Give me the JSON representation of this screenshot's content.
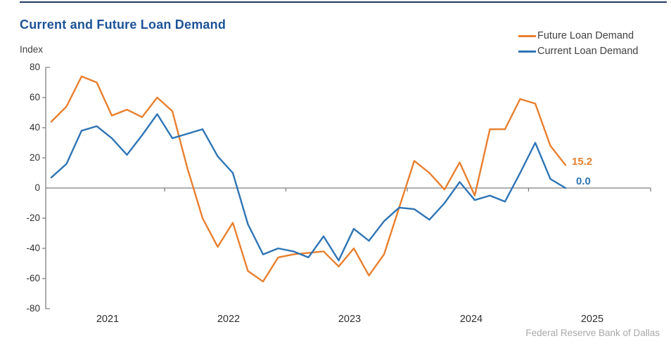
{
  "chart_data": {
    "type": "line",
    "title": "Current and Future Loan Demand",
    "ylabel": "Index",
    "ylim": [
      -80,
      80
    ],
    "y_ticks": [
      80,
      60,
      40,
      20,
      0,
      -20,
      -40,
      -60,
      -80
    ],
    "x_tick_labels": [
      "2021",
      "2022",
      "2023",
      "2024",
      "2025"
    ],
    "points_per_year": 8,
    "grid": "off",
    "legend_position": "top-right",
    "series": [
      {
        "name": "Future Loan Demand",
        "color": "#e87f2e",
        "end_label": "15.2",
        "values": [
          44,
          54,
          74,
          70,
          48,
          52,
          47,
          60,
          51,
          13,
          -20,
          -39,
          -23,
          -55,
          -62,
          -46,
          -44,
          -43,
          -42,
          -52,
          -40,
          -58,
          -44,
          -13,
          18,
          10,
          -1,
          17,
          -5,
          39,
          39,
          59,
          56,
          28,
          15.2
        ]
      },
      {
        "name": "Current Loan Demand",
        "color": "#2e74b5",
        "end_label": "0.0",
        "values": [
          7,
          16,
          38,
          41,
          33,
          22,
          35,
          49,
          33,
          36,
          39,
          21,
          10,
          -24,
          -44,
          -40,
          -42,
          -46,
          -32,
          -48,
          -27,
          -35,
          -22,
          -13,
          -14,
          -21,
          -10,
          4,
          -8,
          -5,
          -9,
          10,
          30,
          6,
          0
        ]
      }
    ],
    "source": "Federal Reserve Bank of Dallas"
  }
}
